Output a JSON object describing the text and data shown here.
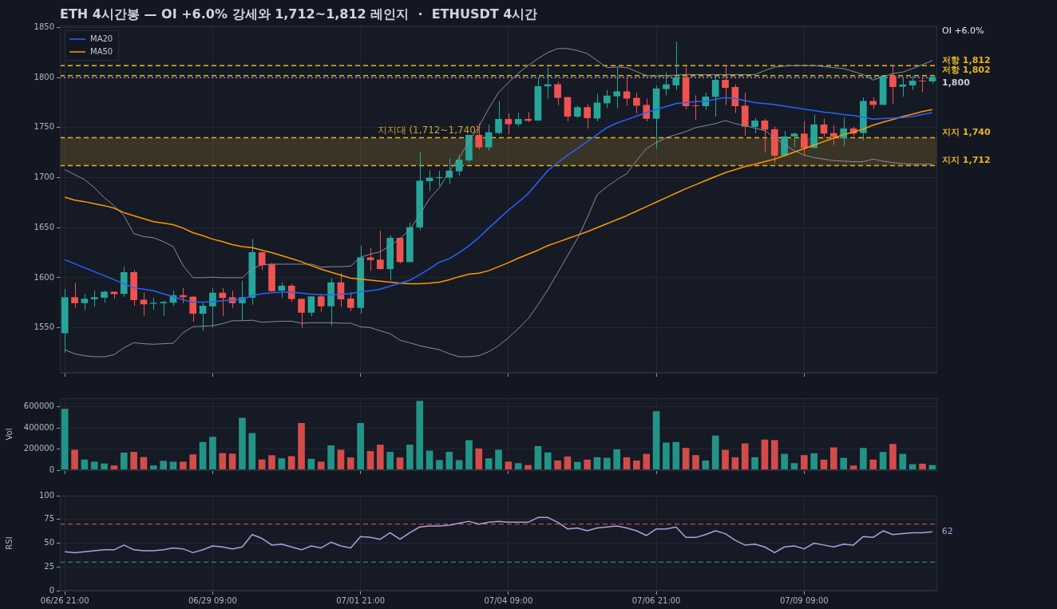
{
  "chart_data": [
    {
      "type": "candlestick",
      "title": "ETH 4시간봉 — OI +6.0% 강세와 1,712~1,812 레인지  ·  ETHUSDT 4시간",
      "categories": [
        null,
        null,
        null,
        null,
        null,
        null,
        null,
        null,
        null,
        null,
        null,
        null,
        null,
        null,
        null,
        null,
        null,
        null,
        null,
        null,
        null,
        null,
        null,
        null,
        null,
        null,
        null,
        null,
        null,
        null,
        null,
        null,
        null,
        null,
        null,
        null,
        null,
        null,
        null,
        null,
        null,
        null,
        null,
        null,
        null,
        null,
        null,
        null,
        null,
        null,
        null,
        null,
        null,
        null,
        null,
        null,
        null,
        null,
        null,
        null,
        null,
        null,
        null,
        null,
        null,
        null,
        null,
        null,
        null,
        null,
        null,
        null,
        null,
        null,
        null,
        null,
        null,
        null,
        null,
        null,
        null,
        null,
        null,
        null,
        null,
        null,
        null,
        null,
        null
      ],
      "ohlc": [
        [
          1544.5,
          1588.8,
          1525,
          1580.5
        ],
        [
          1580.5,
          1595,
          1570,
          1574.5
        ],
        [
          1574.5,
          1583.6,
          1567.5,
          1579
        ],
        [
          1578.4,
          1587,
          1571,
          1580.5
        ],
        [
          1580,
          1587,
          1575,
          1586
        ],
        [
          1586,
          1586,
          1579,
          1583.6
        ],
        [
          1583.8,
          1611,
          1581,
          1605.5
        ],
        [
          1605.5,
          1607.5,
          1572,
          1577.6
        ],
        [
          1578,
          1585,
          1562,
          1573.4
        ],
        [
          1574,
          1580,
          1568,
          1575
        ],
        [
          1574.5,
          1577,
          1562,
          1575.8
        ],
        [
          1575,
          1587,
          1572,
          1582.5
        ],
        [
          1582.5,
          1589.6,
          1574.5,
          1580.5
        ],
        [
          1581,
          1581.8,
          1556,
          1564
        ],
        [
          1564,
          1574.7,
          1547,
          1572
        ],
        [
          1571.4,
          1589.6,
          1550,
          1585
        ],
        [
          1585,
          1589.6,
          1561.5,
          1579.7
        ],
        [
          1580.5,
          1587,
          1570,
          1574.5
        ],
        [
          1574.5,
          1597,
          1557,
          1580.5
        ],
        [
          1580,
          1638.8,
          1573,
          1625.5
        ],
        [
          1625.5,
          1625.5,
          1607.8,
          1612.5
        ],
        [
          1613.3,
          1614.8,
          1585.7,
          1586.5
        ],
        [
          1587,
          1595.6,
          1579.7,
          1592
        ],
        [
          1592,
          1594,
          1575.8,
          1578.6
        ],
        [
          1578.9,
          1578.9,
          1550,
          1565
        ],
        [
          1565,
          1581.3,
          1561.5,
          1581.3
        ],
        [
          1581.3,
          1583.6,
          1566,
          1571.4
        ],
        [
          1571.4,
          1599.5,
          1552,
          1595.3
        ],
        [
          1595.3,
          1604.7,
          1570.5,
          1578.4
        ],
        [
          1579.2,
          1585.7,
          1566.6,
          1569.8
        ],
        [
          1569.8,
          1632,
          1564,
          1620.3
        ],
        [
          1620.3,
          1630,
          1606.5,
          1617.5
        ],
        [
          1618,
          1646.9,
          1608.6,
          1608.6
        ],
        [
          1608.6,
          1642.5,
          1597,
          1639.9
        ],
        [
          1639.9,
          1639.9,
          1614.3,
          1615.6
        ],
        [
          1615.6,
          1655.2,
          1615.6,
          1650.5
        ],
        [
          1650.3,
          1725.6,
          1647.4,
          1696.9
        ],
        [
          1696.4,
          1707.3,
          1686.5,
          1700
        ],
        [
          1699.5,
          1706.8,
          1691.7,
          1700.5
        ],
        [
          1700,
          1719.3,
          1694,
          1707
        ],
        [
          1706.3,
          1722.4,
          1702.1,
          1718
        ],
        [
          1717.2,
          1742.7,
          1715.1,
          1742.7
        ],
        [
          1742.7,
          1754.2,
          1728.2,
          1730.2
        ],
        [
          1730.2,
          1752.9,
          1727.1,
          1745.3
        ],
        [
          1744.6,
          1776.6,
          1743.3,
          1758.6
        ],
        [
          1758.6,
          1764.1,
          1743.3,
          1753.4
        ],
        [
          1753.4,
          1764.6,
          1751.1,
          1758.6
        ],
        [
          1758.6,
          1765.4,
          1755.5,
          1756.8
        ],
        [
          1757.1,
          1800,
          1757.1,
          1791.4
        ],
        [
          1791.2,
          1810.4,
          1778.9,
          1793.3
        ],
        [
          1793.3,
          1795.9,
          1772.4,
          1779.7
        ],
        [
          1780.5,
          1780.5,
          1756.3,
          1761
        ],
        [
          1761,
          1772.4,
          1759.4,
          1770.4
        ],
        [
          1770.4,
          1773,
          1749,
          1759.4
        ],
        [
          1759.1,
          1783.6,
          1756.3,
          1775
        ],
        [
          1774.3,
          1787.5,
          1769.8,
          1782
        ],
        [
          1781.3,
          1809.7,
          1769.3,
          1786.2
        ],
        [
          1786.2,
          1800,
          1771.9,
          1779
        ],
        [
          1779.7,
          1784.9,
          1764.1,
          1771.9
        ],
        [
          1772.7,
          1778.9,
          1756.3,
          1758.9
        ],
        [
          1758.9,
          1792,
          1728.9,
          1789.1
        ],
        [
          1788.5,
          1805.2,
          1782.3,
          1793.2
        ],
        [
          1792.2,
          1835.7,
          1787.5,
          1800.3
        ],
        [
          1800.3,
          1810.9,
          1768.2,
          1771.4
        ],
        [
          1772,
          1782.3,
          1757.6,
          1771.4
        ],
        [
          1771.4,
          1784.9,
          1767.7,
          1781
        ],
        [
          1780.7,
          1803.1,
          1761,
          1797.7
        ],
        [
          1797.7,
          1812.2,
          1772.7,
          1789.8
        ],
        [
          1790.6,
          1793.2,
          1764.6,
          1771.4
        ],
        [
          1771.9,
          1784.9,
          1741.9,
          1751
        ],
        [
          1750.8,
          1759.6,
          1744.5,
          1757
        ],
        [
          1757,
          1758.9,
          1725,
          1747.9
        ],
        [
          1748.4,
          1751,
          1714.6,
          1721.9
        ],
        [
          1721.9,
          1746.6,
          1721.1,
          1741.1
        ],
        [
          1741.1,
          1745,
          1730.2,
          1744
        ],
        [
          1744,
          1756.3,
          1721.9,
          1729.7
        ],
        [
          1729.7,
          1762.8,
          1729.7,
          1753.1
        ],
        [
          1753.1,
          1758.9,
          1740.6,
          1744
        ],
        [
          1744.5,
          1752.3,
          1732.8,
          1740.6
        ],
        [
          1739.3,
          1760.2,
          1731.5,
          1749.2
        ],
        [
          1749.2,
          1751,
          1741.9,
          1744
        ],
        [
          1744.5,
          1780.2,
          1737.2,
          1776.6
        ],
        [
          1776.6,
          1780.2,
          1768.5,
          1772.7
        ],
        [
          1772.7,
          1801.6,
          1772.7,
          1801.6
        ],
        [
          1801.6,
          1812.2,
          1774,
          1790.6
        ],
        [
          1790.9,
          1800,
          1781,
          1793
        ],
        [
          1792.2,
          1801.8,
          1787.5,
          1796.9
        ],
        [
          1796.9,
          1799.7,
          1785.4,
          1796.1
        ],
        [
          1796.1,
          1803.1,
          1794,
          1800.5
        ]
      ],
      "colors": [
        "#26a69a",
        "#ef5350",
        "#26a69a",
        "#26a69a",
        "#26a69a",
        "#ef5350",
        "#26a69a",
        "#ef5350",
        "#ef5350",
        "#26a69a",
        "#26a69a",
        "#26a69a",
        "#ef5350",
        "#ef5350",
        "#26a69a",
        "#26a69a",
        "#ef5350",
        "#ef5350",
        "#26a69a",
        "#26a69a",
        "#ef5350",
        "#ef5350",
        "#26a69a",
        "#ef5350",
        "#ef5350",
        "#26a69a",
        "#ef5350",
        "#26a69a",
        "#ef5350",
        "#ef5350",
        "#26a69a",
        "#ef5350",
        "#ef5350",
        "#26a69a",
        "#ef5350",
        "#26a69a",
        "#26a69a",
        "#26a69a",
        "#26a69a",
        "#26a69a",
        "#26a69a",
        "#26a69a",
        "#ef5350",
        "#26a69a",
        "#26a69a",
        "#ef5350",
        "#26a69a",
        "#ef5350",
        "#26a69a",
        "#26a69a",
        "#ef5350",
        "#ef5350",
        "#26a69a",
        "#ef5350",
        "#26a69a",
        "#26a69a",
        "#26a69a",
        "#ef5350",
        "#ef5350",
        "#ef5350",
        "#26a69a",
        "#26a69a",
        "#26a69a",
        "#ef5350",
        "#ef5350",
        "#26a69a",
        "#26a69a",
        "#ef5350",
        "#ef5350",
        "#ef5350",
        "#26a69a",
        "#ef5350",
        "#ef5350",
        "#26a69a",
        "#26a69a",
        "#ef5350",
        "#26a69a",
        "#ef5350",
        "#ef5350",
        "#26a69a",
        "#ef5350",
        "#26a69a",
        "#ef5350",
        "#26a69a",
        "#ef5350",
        "#26a69a",
        "#26a69a",
        "#ef5350",
        "#26a69a"
      ],
      "series": [
        {
          "type": "line",
          "name": "MA20",
          "color": "#2962ff",
          "values": [
            1618,
            1614,
            1610,
            1606,
            1602,
            1598,
            1594,
            1590,
            1588.5,
            1587,
            1584,
            1581,
            1578,
            1575.5,
            1575.5,
            1576,
            1577,
            1577.5,
            1578.5,
            1582,
            1584,
            1585,
            1585.5,
            1585.5,
            1584.5,
            1583.5,
            1583,
            1583,
            1583.5,
            1584,
            1586,
            1587,
            1588.5,
            1591.5,
            1594.5,
            1597.5,
            1603,
            1609,
            1615.5,
            1619,
            1625,
            1632,
            1640,
            1649.5,
            1658.5,
            1667.5,
            1675.5,
            1684,
            1695.5,
            1707,
            1715,
            1722.5,
            1729,
            1736,
            1743,
            1750,
            1754.5,
            1758,
            1761.5,
            1765,
            1768,
            1771,
            1774,
            1775,
            1776,
            1776.5,
            1778.5,
            1780,
            1779,
            1777,
            1775,
            1774,
            1773,
            1771.5,
            1770,
            1768.5,
            1767,
            1765.5,
            1764.5,
            1763,
            1762,
            1760.5,
            1758.5,
            1759,
            1759.5,
            1760,
            1761,
            1763,
            1765
          ]
        },
        {
          "type": "line",
          "color": "#8a8d96",
          "values": [
            1708,
            1703,
            1698,
            1690,
            1680,
            1672,
            1662,
            1644,
            1641,
            1640,
            1636,
            1631,
            1612,
            1600,
            1600,
            1600.5,
            1600,
            1600,
            1600,
            1609,
            1613,
            1613.5,
            1613.5,
            1613.5,
            1613.5,
            1613.5,
            1610.5,
            1611,
            1611,
            1611.5,
            1620.5,
            1623.5,
            1626,
            1632,
            1639,
            1648,
            1663,
            1679,
            1690,
            1706,
            1720,
            1736,
            1751,
            1769,
            1785,
            1795,
            1804.5,
            1812,
            1819,
            1825,
            1829,
            1829,
            1827,
            1824,
            1817,
            1810,
            1810.5,
            1810,
            1806,
            1802,
            1801.5,
            1802,
            1802.5,
            1803,
            1803,
            1803,
            1803,
            1803,
            1803,
            1803,
            1803,
            1807,
            1810.5,
            1811.5,
            1812,
            1812,
            1812,
            1811,
            1810,
            1809,
            1806,
            1803,
            1797.5,
            1801,
            1804,
            1805.5,
            1809,
            1813,
            1817
          ]
        },
        {
          "type": "line",
          "color": "#8a8d96",
          "values": [
            1528,
            1524,
            1522,
            1521,
            1521,
            1523,
            1530,
            1535,
            1534,
            1533.5,
            1534,
            1534.5,
            1545,
            1551,
            1551.5,
            1552,
            1554,
            1557,
            1557,
            1557.5,
            1555.5,
            1556,
            1556.5,
            1556.5,
            1554.5,
            1555,
            1555,
            1555,
            1554.5,
            1554.5,
            1551,
            1550,
            1547,
            1544,
            1537.5,
            1535,
            1532,
            1530,
            1528,
            1524,
            1521,
            1521,
            1522,
            1526,
            1532,
            1540,
            1549,
            1559,
            1573,
            1588,
            1605,
            1622,
            1639,
            1660,
            1683,
            1691,
            1698,
            1704,
            1717,
            1729,
            1735,
            1740,
            1743,
            1746,
            1750,
            1752,
            1754,
            1757,
            1754,
            1752,
            1749.5,
            1747,
            1740,
            1733,
            1727,
            1722.5,
            1720,
            1718.5,
            1717,
            1716.5,
            1716,
            1716,
            1718.5,
            1716.5,
            1715,
            1714,
            1713.5,
            1713.5,
            1713.5
          ]
        },
        {
          "type": "line",
          "name": "MA50",
          "color": "#ff9800",
          "values": [
            1680.5,
            1677.5,
            1676,
            1674,
            1672,
            1669.5,
            1665,
            1662,
            1659,
            1656,
            1654.5,
            1653,
            1649.5,
            1645,
            1642,
            1638.5,
            1636,
            1633,
            1631,
            1630,
            1627.5,
            1625,
            1622,
            1619,
            1616,
            1612,
            1608.5,
            1605.5,
            1602.5,
            1599.5,
            1598.5,
            1597.5,
            1596.5,
            1595.5,
            1594.5,
            1594,
            1594,
            1594.5,
            1595.5,
            1598,
            1601,
            1603.5,
            1604.5,
            1607,
            1611,
            1615,
            1619.5,
            1623.5,
            1627.5,
            1632,
            1635.5,
            1639,
            1642.5,
            1646,
            1650,
            1654,
            1658,
            1662,
            1666.5,
            1671,
            1675.5,
            1680,
            1684.5,
            1689,
            1693,
            1697,
            1701,
            1705,
            1708,
            1711,
            1713.5,
            1716,
            1718.5,
            1722,
            1725.5,
            1729,
            1732.5,
            1736,
            1739.5,
            1743,
            1745.5,
            1748.5,
            1752.5,
            1755.5,
            1758,
            1761,
            1763.5,
            1766,
            1768
          ]
        }
      ],
      "ylim": [
        1505,
        1852
      ],
      "yticks": [
        1550,
        1600,
        1650,
        1700,
        1750,
        1800,
        1850
      ],
      "ref_lines": [
        {
          "axis": "y",
          "value": 1812,
          "label": "저항 1,812",
          "color": "#e6b422",
          "line_style": "dashed"
        },
        {
          "axis": "y",
          "value": 1802,
          "label": "저항 1,802",
          "color": "#e6b422",
          "line_style": "dashed"
        },
        {
          "axis": "y",
          "value": 1800,
          "label": "1,800",
          "color": "#c9ccd4",
          "line_style": "dotted"
        },
        {
          "axis": "y",
          "value": 1740,
          "label": "지지 1,740",
          "color": "#e6b422",
          "line_style": "dashed"
        },
        {
          "axis": "y",
          "value": 1712,
          "label": "지지 1,712",
          "color": "#e6b422",
          "line_style": "dashed"
        }
      ],
      "bands": [
        {
          "axis": "y",
          "from": 1712,
          "to": 1740,
          "label": "지지대 (1,712~1,740)",
          "color": "#c9a227"
        }
      ],
      "annotations": [
        "OI +6.0%"
      ],
      "legend": "top left",
      "grid": true,
      "tick_labels": "y"
    },
    {
      "type": "bar",
      "ylabel": "Vol",
      "categories": [
        null,
        null,
        null,
        null,
        null,
        null,
        null,
        null,
        null,
        null,
        null,
        null,
        null,
        null,
        null,
        null,
        null,
        null,
        null,
        null,
        null,
        null,
        null,
        null,
        null,
        null,
        null,
        null,
        null,
        null,
        null,
        null,
        null,
        null,
        null,
        null,
        null,
        null,
        null,
        null,
        null,
        null,
        null,
        null,
        null,
        null,
        null,
        null,
        null,
        null,
        null,
        null,
        null,
        null,
        null,
        null,
        null,
        null,
        null,
        null,
        null,
        null,
        null,
        null,
        null,
        null,
        null,
        null,
        null,
        null,
        null,
        null,
        null,
        null,
        null,
        null,
        null,
        null,
        null,
        null,
        null,
        null,
        null,
        null,
        null,
        null,
        null,
        null,
        null
      ],
      "values": [
        580000,
        193000,
        100000,
        80000,
        63000,
        44000,
        166000,
        173000,
        124000,
        44000,
        88000,
        80000,
        80000,
        149000,
        266000,
        315000,
        161000,
        156000,
        495000,
        351000,
        100000,
        141000,
        112000,
        132000,
        446000,
        107000,
        80000,
        234000,
        193000,
        120000,
        446000,
        180000,
        241000,
        173000,
        120000,
        241000,
        656000,
        185000,
        95000,
        173000,
        95000,
        283000,
        205000,
        112000,
        193000,
        80000,
        66000,
        48000,
        228000,
        167000,
        91000,
        129000,
        78000,
        99000,
        122000,
        116000,
        197000,
        122000,
        91000,
        154000,
        557000,
        261000,
        266000,
        210000,
        142000,
        91000,
        327000,
        192000,
        122000,
        253000,
        122000,
        289000,
        284000,
        154000,
        66000,
        142000,
        160000,
        99000,
        215000,
        116000,
        43000,
        210000,
        99000,
        172000,
        248000,
        154000,
        56000,
        61000,
        48000
      ],
      "colors": [
        "#229487",
        "#d24c4a",
        "#229487",
        "#229487",
        "#229487",
        "#d24c4a",
        "#229487",
        "#d24c4a",
        "#d24c4a",
        "#229487",
        "#229487",
        "#229487",
        "#d24c4a",
        "#d24c4a",
        "#229487",
        "#229487",
        "#d24c4a",
        "#d24c4a",
        "#229487",
        "#229487",
        "#d24c4a",
        "#d24c4a",
        "#229487",
        "#d24c4a",
        "#d24c4a",
        "#229487",
        "#d24c4a",
        "#229487",
        "#d24c4a",
        "#d24c4a",
        "#229487",
        "#d24c4a",
        "#d24c4a",
        "#229487",
        "#d24c4a",
        "#229487",
        "#229487",
        "#229487",
        "#229487",
        "#229487",
        "#229487",
        "#229487",
        "#d24c4a",
        "#229487",
        "#229487",
        "#d24c4a",
        "#229487",
        "#d24c4a",
        "#229487",
        "#229487",
        "#d24c4a",
        "#d24c4a",
        "#229487",
        "#d24c4a",
        "#229487",
        "#229487",
        "#229487",
        "#d24c4a",
        "#d24c4a",
        "#d24c4a",
        "#229487",
        "#229487",
        "#229487",
        "#d24c4a",
        "#d24c4a",
        "#229487",
        "#229487",
        "#d24c4a",
        "#d24c4a",
        "#d24c4a",
        "#229487",
        "#d24c4a",
        "#d24c4a",
        "#229487",
        "#229487",
        "#d24c4a",
        "#229487",
        "#d24c4a",
        "#d24c4a",
        "#229487",
        "#d24c4a",
        "#229487",
        "#d24c4a",
        "#229487",
        "#d24c4a",
        "#229487",
        "#229487",
        "#d24c4a",
        "#229487"
      ],
      "ylim": [
        0,
        680000
      ],
      "yticks": [
        0,
        200000,
        400000,
        600000
      ],
      "grid": true,
      "tick_labels": "y"
    },
    {
      "type": "line",
      "ylabel": "RSI",
      "color": "#b39ddb",
      "marker": "none",
      "categories": [
        "06/26 21:00",
        null,
        null,
        null,
        null,
        null,
        null,
        null,
        null,
        null,
        null,
        null,
        null,
        null,
        null,
        "06/29 09:00",
        null,
        null,
        null,
        null,
        null,
        null,
        null,
        null,
        null,
        null,
        null,
        null,
        null,
        null,
        "07/01 21:00",
        null,
        null,
        null,
        null,
        null,
        null,
        null,
        null,
        null,
        null,
        null,
        null,
        null,
        null,
        "07/04 09:00",
        null,
        null,
        null,
        null,
        null,
        null,
        null,
        null,
        null,
        null,
        null,
        null,
        null,
        null,
        "07/06 21:00",
        null,
        null,
        null,
        null,
        null,
        null,
        null,
        null,
        null,
        null,
        null,
        null,
        null,
        null,
        "07/09 09:00",
        null,
        null,
        null,
        null,
        null,
        null,
        null,
        null,
        null,
        null,
        null,
        null,
        null
      ],
      "values": [
        41,
        40,
        41,
        42,
        43,
        43,
        48,
        43,
        42,
        42,
        43,
        45,
        44,
        40,
        43,
        47,
        46,
        44,
        46,
        59,
        55,
        48,
        49,
        46,
        43,
        47,
        45,
        51,
        47,
        45,
        57,
        56,
        54,
        61,
        54,
        61,
        67,
        68,
        68,
        69,
        71,
        73,
        70,
        72,
        73,
        72,
        72,
        72,
        77,
        77,
        72,
        65,
        66,
        63,
        66,
        67,
        68,
        66,
        63,
        58,
        65,
        65,
        67,
        56,
        56,
        59,
        63,
        60,
        53,
        48,
        49,
        46,
        40,
        46,
        47,
        44,
        50,
        48,
        46,
        49,
        48,
        57,
        56,
        63,
        59,
        60,
        61,
        61,
        62
      ],
      "value_labels": [
        null,
        null,
        null,
        null,
        null,
        null,
        null,
        null,
        null,
        null,
        null,
        null,
        null,
        null,
        null,
        null,
        null,
        null,
        null,
        null,
        null,
        null,
        null,
        null,
        null,
        null,
        null,
        null,
        null,
        null,
        null,
        null,
        null,
        null,
        null,
        null,
        null,
        null,
        null,
        null,
        null,
        null,
        null,
        null,
        null,
        null,
        null,
        null,
        null,
        null,
        null,
        null,
        null,
        null,
        null,
        null,
        null,
        null,
        null,
        null,
        null,
        null,
        null,
        null,
        null,
        null,
        null,
        null,
        null,
        null,
        null,
        null,
        null,
        null,
        null,
        null,
        null,
        null,
        null,
        null,
        null,
        null,
        null,
        null,
        null,
        null,
        null,
        null,
        "62"
      ],
      "ylim": [
        0,
        100
      ],
      "yticks": [
        0,
        25,
        50,
        75,
        100
      ],
      "ref_lines": [
        {
          "axis": "y",
          "value": 70,
          "color": "#ef5350",
          "line_style": "dashed"
        },
        {
          "axis": "y",
          "value": 30,
          "color": "#26a69a",
          "line_style": "dashed"
        }
      ],
      "grid": true
    }
  ]
}
